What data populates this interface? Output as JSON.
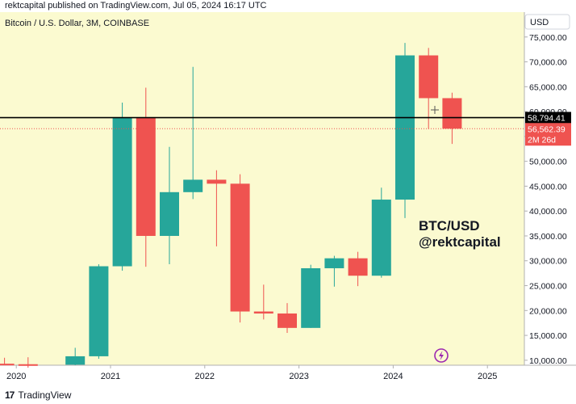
{
  "header": {
    "text": "rektcapital published on TradingView.com, Jul 05, 2024 16:17 UTC"
  },
  "footer": {
    "brand": "TradingView",
    "logo_glyph": "17"
  },
  "colors": {
    "plot_bg": "#fbfad0",
    "up": "#26a69a",
    "down": "#ef5350",
    "price_line": "#000000",
    "last_price_line": "#ef5350"
  },
  "chart_data": {
    "type": "candlestick",
    "title": "Bitcoin / U.S. Dollar, 3M, COINBASE",
    "currency_label": "USD",
    "annotation_lines": [
      "BTC/USD",
      "@rektcapital"
    ],
    "x_ticks": [
      "2020",
      "2021",
      "2022",
      "2023",
      "2024",
      "2025"
    ],
    "y_ticks": [
      10000,
      15000,
      20000,
      25000,
      30000,
      35000,
      40000,
      45000,
      50000,
      55000,
      60000,
      65000,
      70000,
      75000
    ],
    "y_tick_labels": [
      "10,000.00",
      "15,000.00",
      "20,000.00",
      "25,000.00",
      "30,000.00",
      "35,000.00",
      "40,000.00",
      "45,000.00",
      "50,000.00",
      "55,000.00",
      "60,000.00",
      "65,000.00",
      "70,000.00",
      "75,000.00"
    ],
    "ylim": [
      9000,
      80000
    ],
    "horizontal_level": {
      "value": 58794.41,
      "label": "58,794.41"
    },
    "last_price": {
      "value": 56562.39,
      "label": "56,562.39",
      "countdown": "2M 26d"
    },
    "candles": [
      {
        "t": "2019-10",
        "o": 9300,
        "h": 10500,
        "l": 9000,
        "c": 9200
      },
      {
        "t": "2020-01",
        "o": 9200,
        "h": 10600,
        "l": 8500,
        "c": 9100
      },
      {
        "t": "2020-07",
        "o": 9100,
        "h": 12500,
        "l": 9000,
        "c": 10800
      },
      {
        "t": "2020-10",
        "o": 10800,
        "h": 29300,
        "l": 10300,
        "c": 28900
      },
      {
        "t": "2021-01",
        "o": 28900,
        "h": 61800,
        "l": 28000,
        "c": 58800
      },
      {
        "t": "2021-04",
        "o": 58800,
        "h": 64800,
        "l": 28800,
        "c": 35000
      },
      {
        "t": "2021-07",
        "o": 35000,
        "h": 52900,
        "l": 29300,
        "c": 43800
      },
      {
        "t": "2021-10",
        "o": 43800,
        "h": 69000,
        "l": 42400,
        "c": 46300
      },
      {
        "t": "2022-01",
        "o": 46300,
        "h": 48200,
        "l": 32900,
        "c": 45500
      },
      {
        "t": "2022-04",
        "o": 45500,
        "h": 47400,
        "l": 17600,
        "c": 19800
      },
      {
        "t": "2022-07",
        "o": 19800,
        "h": 25200,
        "l": 18200,
        "c": 19400
      },
      {
        "t": "2022-10",
        "o": 19400,
        "h": 21500,
        "l": 15500,
        "c": 16500
      },
      {
        "t": "2023-01",
        "o": 16500,
        "h": 29200,
        "l": 16500,
        "c": 28500
      },
      {
        "t": "2023-04",
        "o": 28500,
        "h": 31000,
        "l": 24800,
        "c": 30500
      },
      {
        "t": "2023-07",
        "o": 30500,
        "h": 31800,
        "l": 24900,
        "c": 27000
      },
      {
        "t": "2023-10",
        "o": 27000,
        "h": 44700,
        "l": 26600,
        "c": 42300
      },
      {
        "t": "2024-01",
        "o": 42300,
        "h": 73800,
        "l": 38600,
        "c": 71300
      },
      {
        "t": "2024-04",
        "o": 71300,
        "h": 72800,
        "l": 56500,
        "c": 62700
      },
      {
        "t": "2024-07",
        "o": 62700,
        "h": 63800,
        "l": 53500,
        "c": 56562
      }
    ]
  }
}
